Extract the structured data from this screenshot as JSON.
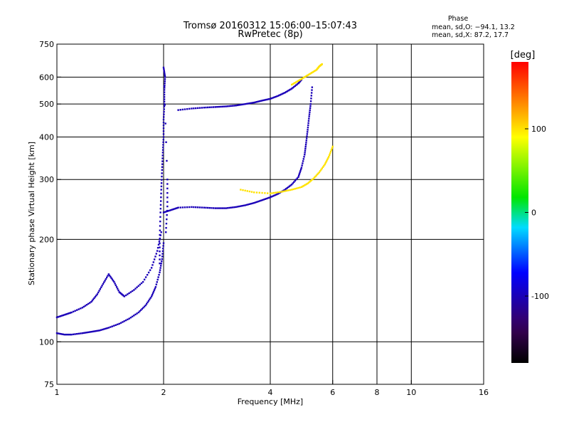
{
  "chart_data": {
    "type": "scatter",
    "title": "Tromsø 20160312 15:06:00–15:07:43",
    "subtitle": "RwPretec (8p)",
    "xlabel": "Frequency [MHz]",
    "ylabel": "Stationary phase Virtual Height [km]",
    "x_scale": "log",
    "y_scale": "log",
    "xlim": [
      1,
      16
    ],
    "ylim": [
      75,
      750
    ],
    "x_ticks": [
      1,
      2,
      4,
      6,
      8,
      10,
      16
    ],
    "x_tick_labels": [
      "1",
      "2",
      "4",
      "6",
      "8",
      "10",
      "16"
    ],
    "y_ticks": [
      75,
      100,
      200,
      300,
      400,
      500,
      600,
      750
    ],
    "y_tick_labels": [
      "75",
      "100",
      "200",
      "300",
      "400",
      "500",
      "600",
      "750"
    ],
    "grid": true,
    "stats": {
      "heading": "Phase",
      "line_o": "mean, sd,O: −94.1, 13.2",
      "line_x": "mean, sd,X:  87.2, 17.7"
    },
    "colorbar": {
      "label": "[deg]",
      "range": [
        -180,
        180
      ],
      "ticks": [
        100,
        0,
        -100
      ],
      "tick_labels": [
        "100",
        "0",
        "-100"
      ]
    },
    "series": [
      {
        "name": "O-mode E-layer trace (lower)",
        "phase": -100,
        "points": [
          [
            1.0,
            106
          ],
          [
            1.05,
            105
          ],
          [
            1.1,
            105
          ],
          [
            1.18,
            106
          ],
          [
            1.25,
            107
          ],
          [
            1.32,
            108
          ],
          [
            1.4,
            110
          ],
          [
            1.5,
            113
          ],
          [
            1.6,
            117
          ],
          [
            1.7,
            122
          ],
          [
            1.78,
            128
          ],
          [
            1.85,
            136
          ],
          [
            1.9,
            145
          ],
          [
            1.95,
            160
          ],
          [
            1.98,
            175
          ],
          [
            2.0,
            195
          ]
        ]
      },
      {
        "name": "O-mode E-layer trace (upper)",
        "phase": -100,
        "points": [
          [
            1.0,
            118
          ],
          [
            1.05,
            120
          ],
          [
            1.1,
            122
          ],
          [
            1.18,
            126
          ],
          [
            1.25,
            131
          ],
          [
            1.3,
            138
          ],
          [
            1.35,
            148
          ],
          [
            1.4,
            158
          ],
          [
            1.45,
            150
          ],
          [
            1.5,
            140
          ],
          [
            1.55,
            136
          ],
          [
            1.65,
            142
          ],
          [
            1.75,
            150
          ],
          [
            1.85,
            165
          ],
          [
            1.92,
            185
          ],
          [
            1.97,
            210
          ]
        ]
      },
      {
        "name": "O-mode F-layer trace",
        "phase": -100,
        "points": [
          [
            2.0,
            240
          ],
          [
            2.1,
            244
          ],
          [
            2.2,
            248
          ],
          [
            2.4,
            249
          ],
          [
            2.6,
            248
          ],
          [
            2.8,
            247
          ],
          [
            3.0,
            247
          ],
          [
            3.2,
            249
          ],
          [
            3.4,
            252
          ],
          [
            3.6,
            256
          ],
          [
            3.8,
            261
          ],
          [
            4.0,
            266
          ],
          [
            4.2,
            272
          ],
          [
            4.4,
            280
          ],
          [
            4.6,
            290
          ],
          [
            4.8,
            305
          ],
          [
            4.9,
            325
          ],
          [
            5.0,
            355
          ],
          [
            5.05,
            385
          ],
          [
            5.1,
            420
          ],
          [
            5.15,
            460
          ],
          [
            5.2,
            500
          ],
          [
            5.25,
            560
          ]
        ]
      },
      {
        "name": "O-mode F-layer multiple echo",
        "phase": -100,
        "points": [
          [
            2.2,
            480
          ],
          [
            2.4,
            485
          ],
          [
            2.6,
            488
          ],
          [
            2.8,
            490
          ],
          [
            3.0,
            492
          ],
          [
            3.2,
            495
          ],
          [
            3.4,
            500
          ],
          [
            3.6,
            505
          ],
          [
            3.8,
            512
          ],
          [
            4.0,
            518
          ],
          [
            4.2,
            528
          ],
          [
            4.4,
            540
          ],
          [
            4.6,
            555
          ],
          [
            4.8,
            575
          ],
          [
            4.9,
            590
          ]
        ]
      },
      {
        "name": "Spread trace near 2 MHz",
        "phase": -100,
        "points": [
          [
            1.95,
            170
          ],
          [
            1.95,
            200
          ],
          [
            1.96,
            240
          ],
          [
            1.97,
            280
          ],
          [
            1.98,
            320
          ],
          [
            1.99,
            360
          ],
          [
            2.0,
            400
          ],
          [
            2.0,
            450
          ],
          [
            2.01,
            500
          ],
          [
            2.01,
            550
          ],
          [
            2.02,
            600
          ],
          [
            2.0,
            640
          ],
          [
            2.05,
            300
          ],
          [
            2.05,
            250
          ],
          [
            2.03,
            210
          ]
        ]
      },
      {
        "name": "X-mode F-layer trace",
        "phase": 100,
        "points": [
          [
            3.3,
            280
          ],
          [
            3.6,
            275
          ],
          [
            4.0,
            273
          ],
          [
            4.3,
            276
          ],
          [
            4.6,
            280
          ],
          [
            4.9,
            285
          ],
          [
            5.1,
            292
          ],
          [
            5.3,
            302
          ],
          [
            5.5,
            315
          ],
          [
            5.7,
            332
          ],
          [
            5.85,
            350
          ],
          [
            6.0,
            375
          ]
        ]
      },
      {
        "name": "X-mode F-layer multiple echo",
        "phase": 100,
        "points": [
          [
            4.6,
            570
          ],
          [
            4.8,
            585
          ],
          [
            5.0,
            600
          ],
          [
            5.2,
            615
          ],
          [
            5.4,
            630
          ],
          [
            5.5,
            645
          ],
          [
            5.6,
            655
          ]
        ]
      }
    ]
  }
}
